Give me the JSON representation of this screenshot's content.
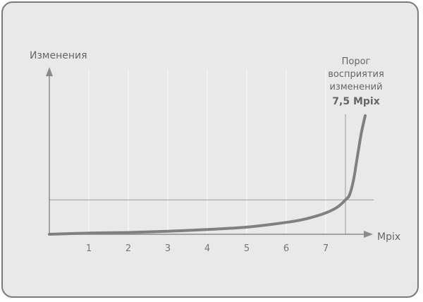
{
  "chart_data": {
    "type": "line",
    "title": "",
    "xlabel": "Mpix",
    "ylabel": "Изменения",
    "xlim": [
      0,
      8.2
    ],
    "ylim": [
      0,
      1
    ],
    "x_ticks": [
      1,
      2,
      3,
      4,
      5,
      6,
      7
    ],
    "x_tick_labels": [
      "1",
      "2",
      "3",
      "4",
      "5",
      "6",
      "7"
    ],
    "grid": {
      "vertical": true,
      "horizontal": false
    },
    "series": [
      {
        "name": "",
        "x": [
          0,
          1,
          2,
          3,
          4,
          5,
          6,
          6.5,
          7,
          7.3,
          7.5,
          7.6,
          7.7,
          7.8,
          7.9,
          8.0
        ],
        "y": [
          0.0,
          0.01,
          0.015,
          0.025,
          0.04,
          0.06,
          0.1,
          0.13,
          0.18,
          0.23,
          0.29,
          0.33,
          0.45,
          0.65,
          0.85,
          1.0
        ]
      }
    ],
    "threshold": {
      "x": 7.5,
      "y": 0.29,
      "label_lines": [
        "Порог",
        "восприятия",
        "изменений"
      ],
      "value_label": "7,5 Mpix"
    }
  },
  "colors": {
    "background": "#e9e9e9",
    "frame": "#7a7a7a",
    "grid": "#ffffff",
    "axis": "#8a8a8a",
    "curve": "#808080",
    "threshold": "#9a9a9a",
    "text": "#666666"
  }
}
